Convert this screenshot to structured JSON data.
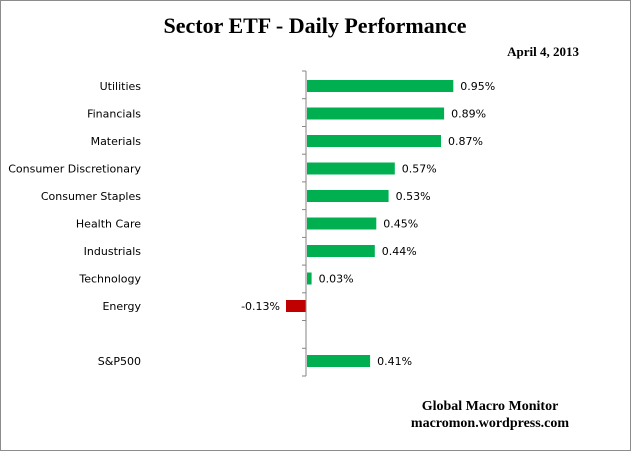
{
  "chart_data": {
    "type": "bar",
    "orientation": "horizontal",
    "title": "Sector ETF - Daily Performance",
    "subtitle": "April 4, 2013",
    "categories": [
      "Utilities",
      "Financials",
      "Materials",
      "Consumer Discretionary",
      "Consumer Staples",
      "Health Care",
      "Industrials",
      "Technology",
      "Energy",
      "S&P500"
    ],
    "values": [
      0.95,
      0.89,
      0.87,
      0.57,
      0.53,
      0.45,
      0.44,
      0.03,
      -0.13,
      0.41
    ],
    "value_labels": [
      "0.95%",
      "0.89%",
      "0.87%",
      "0.57%",
      "0.53%",
      "0.45%",
      "0.44%",
      "0.03%",
      "-0.13%",
      "0.41%"
    ],
    "xlabel": "",
    "ylabel": "",
    "grid": false,
    "legend": "none",
    "colors": {
      "positive": "#00b050",
      "negative": "#c00000",
      "axis": "#868686"
    }
  },
  "credit": {
    "line1": "Global Macro Monitor",
    "line2": "macromon.wordpress.com"
  }
}
